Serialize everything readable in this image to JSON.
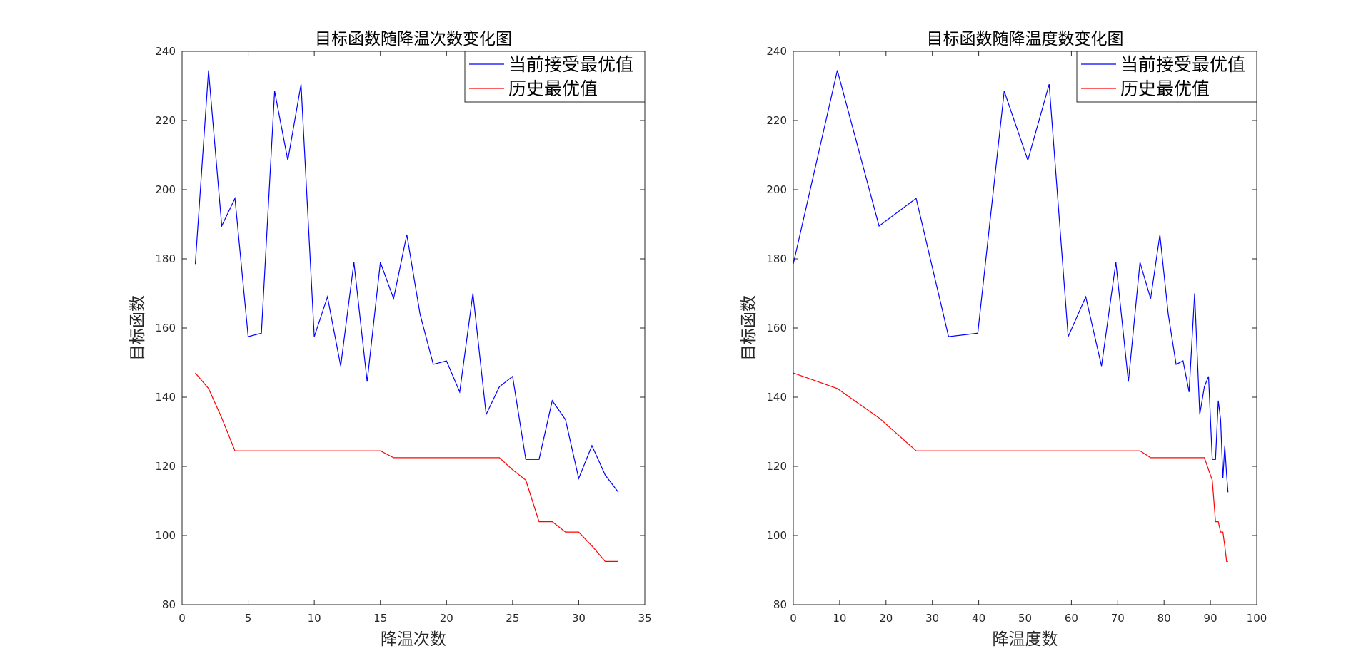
{
  "chart_data": [
    {
      "type": "line",
      "title": "目标函数随降温次数变化图",
      "xlabel": "降温次数",
      "ylabel": "目标函数",
      "xlim": [
        0,
        35
      ],
      "ylim": [
        80,
        240
      ],
      "xticks": [
        0,
        5,
        10,
        15,
        20,
        25,
        30,
        35
      ],
      "yticks": [
        80,
        100,
        120,
        140,
        160,
        180,
        200,
        220,
        240
      ],
      "grid": false,
      "legend_position": "top-right",
      "series": [
        {
          "name": "当前接受最优值",
          "color": "#0000ff",
          "x": [
            1,
            2,
            3,
            4,
            5,
            6,
            7,
            8,
            9,
            10,
            11,
            12,
            13,
            14,
            15,
            16,
            17,
            18,
            19,
            20,
            21,
            22,
            23,
            24,
            25,
            26,
            27,
            28,
            29,
            30,
            31,
            32,
            33
          ],
          "y": [
            178.5,
            234.5,
            189.5,
            197.5,
            157.5,
            158.5,
            228.5,
            208.5,
            230.5,
            157.5,
            169,
            149,
            179,
            144.5,
            179,
            168.5,
            187,
            164,
            149.5,
            150.5,
            141.5,
            170,
            135,
            143,
            146,
            122,
            122,
            139,
            133.5,
            116.5,
            126,
            117.5,
            112.5
          ]
        },
        {
          "name": "历史最优值",
          "color": "#ff0000",
          "x": [
            1,
            2,
            3,
            4,
            5,
            6,
            7,
            8,
            9,
            10,
            11,
            12,
            13,
            14,
            15,
            16,
            17,
            18,
            19,
            20,
            21,
            22,
            23,
            24,
            25,
            26,
            27,
            28,
            29,
            30,
            31,
            32,
            33
          ],
          "y": [
            147,
            142.5,
            134,
            124.5,
            124.5,
            124.5,
            124.5,
            124.5,
            124.5,
            124.5,
            124.5,
            124.5,
            124.5,
            124.5,
            124.5,
            122.5,
            122.5,
            122.5,
            122.5,
            122.5,
            122.5,
            122.5,
            122.5,
            122.5,
            119,
            116,
            104,
            104,
            101,
            101,
            97,
            92.5,
            92.5
          ]
        }
      ]
    },
    {
      "type": "line",
      "title": "目标函数随降温度数变化图",
      "xlabel": "降温度数",
      "ylabel": "目标函数",
      "xlim": [
        0,
        100
      ],
      "ylim": [
        80,
        240
      ],
      "xticks": [
        0,
        10,
        20,
        30,
        40,
        50,
        60,
        70,
        80,
        90,
        100
      ],
      "yticks": [
        80,
        100,
        120,
        140,
        160,
        180,
        200,
        220,
        240
      ],
      "grid": false,
      "legend_position": "top-right",
      "series": [
        {
          "name": "当前接受最优值",
          "color": "#0000ff",
          "x": [
            0,
            9.5,
            18.5,
            26.5,
            33.5,
            39.8,
            45.5,
            50.6,
            55.2,
            59.3,
            63.1,
            66.5,
            69.6,
            72.3,
            74.8,
            77.1,
            79.1,
            80.9,
            82.6,
            84.1,
            85.4,
            86.6,
            87.7,
            88.7,
            89.6,
            90.4,
            91.1,
            91.7,
            92.2,
            92.7,
            93.1,
            93.5,
            93.8
          ],
          "y": [
            178.5,
            234.5,
            189.5,
            197.5,
            157.5,
            158.5,
            228.5,
            208.5,
            230.5,
            157.5,
            169,
            149,
            179,
            144.5,
            179,
            168.5,
            187,
            164,
            149.5,
            150.5,
            141.5,
            170,
            135,
            143,
            146,
            122,
            122,
            139,
            133.5,
            116.5,
            126,
            117.5,
            112.5
          ]
        },
        {
          "name": "历史最优值",
          "color": "#ff0000",
          "x": [
            0,
            9.5,
            18.5,
            26.5,
            33.5,
            39.8,
            45.5,
            50.6,
            55.2,
            59.3,
            63.1,
            66.5,
            69.6,
            72.3,
            74.8,
            77.1,
            79.1,
            80.9,
            82.6,
            84.1,
            85.4,
            86.6,
            87.7,
            88.7,
            89.6,
            90.4,
            91.1,
            91.7,
            92.2,
            92.7,
            93.1,
            93.5,
            93.8
          ],
          "y": [
            147,
            142.5,
            134,
            124.5,
            124.5,
            124.5,
            124.5,
            124.5,
            124.5,
            124.5,
            124.5,
            124.5,
            124.5,
            124.5,
            124.5,
            122.5,
            122.5,
            122.5,
            122.5,
            122.5,
            122.5,
            122.5,
            122.5,
            122.5,
            119,
            116,
            104,
            104,
            101,
            101,
            97,
            92.5,
            92.5
          ]
        }
      ]
    }
  ]
}
